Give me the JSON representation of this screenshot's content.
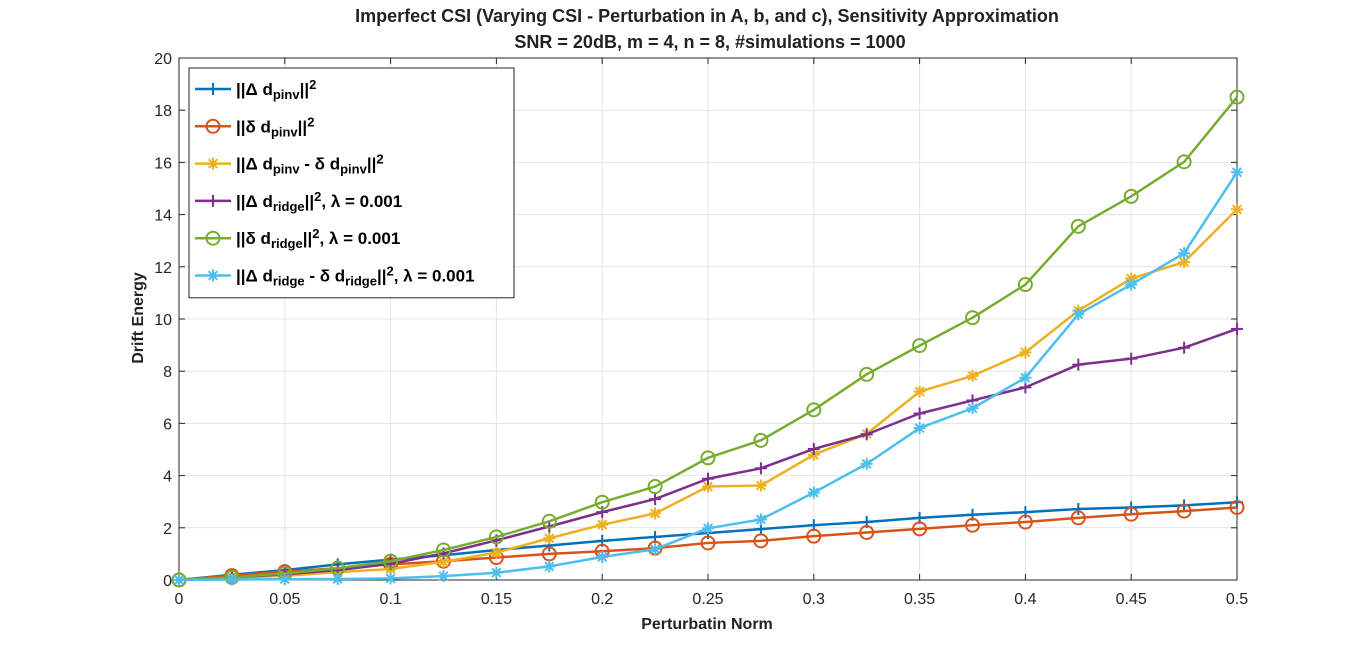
{
  "chart_data": {
    "type": "line",
    "title": "Imperfect CSI (Varying CSI - Perturbation in A, b, and c), Sensitivity Approximation",
    "subtitle": "SNR = 20dB, m = 4, n = 8, #simulations = 1000",
    "xlabel": "Perturbatin Norm",
    "ylabel": "Drift Energy",
    "xlim": [
      0,
      0.5
    ],
    "ylim": [
      0,
      20
    ],
    "xticks": [
      0,
      0.05,
      0.1,
      0.15,
      0.2,
      0.25,
      0.3,
      0.35,
      0.4,
      0.45,
      0.5
    ],
    "xtick_labels": [
      "0",
      "0.05",
      "0.1",
      "0.15",
      "0.2",
      "0.25",
      "0.3",
      "0.35",
      "0.4",
      "0.45",
      "0.5"
    ],
    "yticks": [
      0,
      2,
      4,
      6,
      8,
      10,
      12,
      14,
      16,
      18,
      20
    ],
    "ytick_labels": [
      "0",
      "2",
      "4",
      "6",
      "8",
      "10",
      "12",
      "14",
      "16",
      "18",
      "20"
    ],
    "grid": true,
    "legend_position": "top-left",
    "x": [
      0,
      0.025,
      0.05,
      0.075,
      0.1,
      0.125,
      0.15,
      0.175,
      0.2,
      0.225,
      0.25,
      0.275,
      0.3,
      0.325,
      0.35,
      0.375,
      0.4,
      0.425,
      0.45,
      0.475,
      0.5
    ],
    "series": [
      {
        "legend": [
          [
            "||Δ d",
            ""
          ],
          [
            "pinv",
            "sub"
          ],
          [
            "||",
            ""
          ],
          [
            "2",
            "sup"
          ]
        ],
        "color": "#0072BD",
        "marker": "plus",
        "values": [
          0,
          0.2,
          0.38,
          0.6,
          0.78,
          0.95,
          1.15,
          1.32,
          1.5,
          1.65,
          1.8,
          1.95,
          2.1,
          2.22,
          2.38,
          2.5,
          2.6,
          2.72,
          2.78,
          2.86,
          2.98
        ]
      },
      {
        "legend": [
          [
            "||δ d",
            ""
          ],
          [
            "pinv",
            "sub"
          ],
          [
            "||",
            ""
          ],
          [
            "2",
            "sup"
          ]
        ],
        "color": "#D95319",
        "marker": "circle",
        "values": [
          0,
          0.17,
          0.32,
          0.45,
          0.6,
          0.72,
          0.86,
          1.0,
          1.1,
          1.22,
          1.42,
          1.5,
          1.68,
          1.82,
          1.96,
          2.1,
          2.22,
          2.38,
          2.52,
          2.64,
          2.78
        ]
      },
      {
        "legend": [
          [
            "||Δ d",
            ""
          ],
          [
            "pinv",
            "sub"
          ],
          [
            " - δ d",
            ""
          ],
          [
            "pinv",
            "sub"
          ],
          [
            "||",
            ""
          ],
          [
            "2",
            "sup"
          ]
        ],
        "color": "#EDB120",
        "marker": "asterisk",
        "values": [
          0,
          0.08,
          0.16,
          0.3,
          0.42,
          0.7,
          1.05,
          1.6,
          2.12,
          2.55,
          3.58,
          3.62,
          4.8,
          5.6,
          7.22,
          7.82,
          8.72,
          10.32,
          11.55,
          12.18,
          14.2
        ]
      },
      {
        "legend": [
          [
            "||Δ d",
            ""
          ],
          [
            "ridge",
            "sub"
          ],
          [
            "||",
            ""
          ],
          [
            "2",
            "sup"
          ],
          [
            ", λ = 0.001",
            ""
          ]
        ],
        "color": "#7E2F8E",
        "marker": "plus",
        "values": [
          0,
          0.1,
          0.22,
          0.38,
          0.62,
          1.02,
          1.52,
          2.05,
          2.6,
          3.1,
          3.88,
          4.28,
          5.02,
          5.58,
          6.38,
          6.88,
          7.38,
          8.25,
          8.48,
          8.9,
          9.62
        ]
      },
      {
        "legend": [
          [
            "||δ d",
            ""
          ],
          [
            "ridge",
            "sub"
          ],
          [
            "||",
            ""
          ],
          [
            "2",
            "sup"
          ],
          [
            ", λ = 0.001",
            ""
          ]
        ],
        "color": "#77AC30",
        "marker": "circle",
        "values": [
          0,
          0.1,
          0.25,
          0.45,
          0.72,
          1.15,
          1.65,
          2.25,
          2.98,
          3.58,
          4.68,
          5.35,
          6.52,
          7.88,
          8.98,
          10.05,
          11.32,
          13.55,
          14.7,
          16.02,
          18.5
        ]
      },
      {
        "legend": [
          [
            "||Δ d",
            ""
          ],
          [
            "ridge",
            "sub"
          ],
          [
            " - δ d",
            ""
          ],
          [
            "ridge",
            "sub"
          ],
          [
            "||",
            ""
          ],
          [
            "2",
            "sup"
          ],
          [
            ", λ = 0.001",
            ""
          ]
        ],
        "color": "#4DBEEE",
        "marker": "asterisk",
        "values": [
          0,
          0.02,
          0.03,
          0.04,
          0.06,
          0.15,
          0.28,
          0.52,
          0.88,
          1.18,
          1.98,
          2.32,
          3.35,
          4.45,
          5.82,
          6.58,
          7.75,
          10.18,
          11.32,
          12.52,
          15.62
        ]
      }
    ]
  }
}
